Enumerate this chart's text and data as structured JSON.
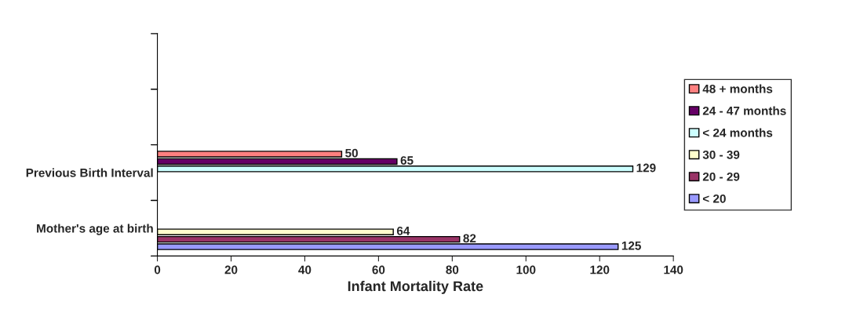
{
  "chart_data": {
    "type": "bar",
    "orientation": "horizontal",
    "xlabel": "Infant Mortality Rate",
    "categories": [
      null,
      null,
      "Previous Birth Interval",
      "Mother's age at birth"
    ],
    "series": [
      {
        "name": "< 20",
        "color": "#9999ff",
        "values": [
          null,
          null,
          null,
          125
        ]
      },
      {
        "name": "20 - 29",
        "color": "#993366",
        "values": [
          null,
          null,
          null,
          82
        ]
      },
      {
        "name": "30 - 39",
        "color": "#ffffcc",
        "values": [
          null,
          null,
          null,
          64
        ]
      },
      {
        "name": "< 24 months",
        "color": "#ccffff",
        "values": [
          null,
          null,
          129,
          null
        ]
      },
      {
        "name": "24 - 47 months",
        "color": "#660066",
        "values": [
          null,
          null,
          65,
          null
        ]
      },
      {
        "name": "48 + months",
        "color": "#ff8080",
        "values": [
          null,
          null,
          50,
          null
        ]
      }
    ],
    "xlim": [
      0,
      140
    ],
    "xticks": [
      0,
      20,
      40,
      60,
      80,
      100,
      120,
      140
    ],
    "data_labels": true,
    "legend": "right",
    "grid": false
  }
}
